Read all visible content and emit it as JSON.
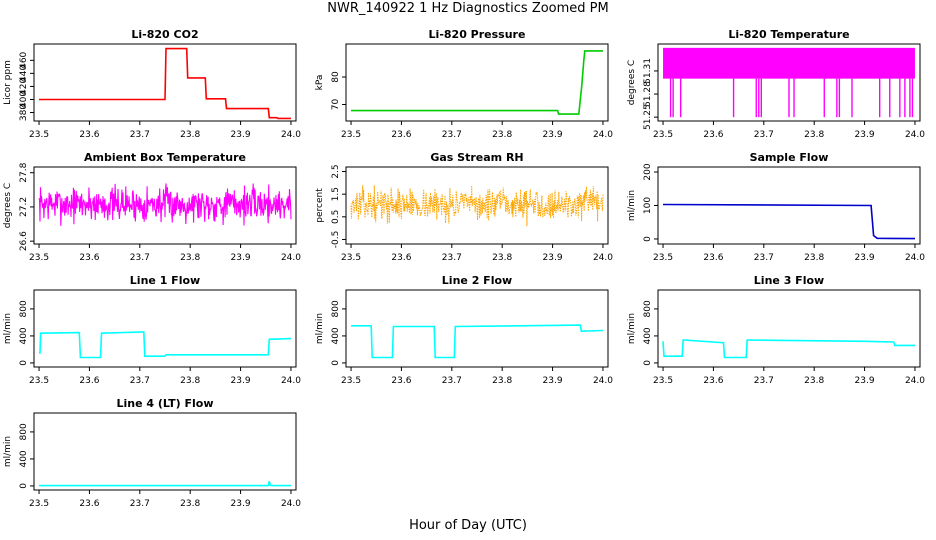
{
  "figure": {
    "title": "NWR_140922  1 Hz Diagnostics Zoomed PM",
    "xlabel": "Hour of Day (UTC)"
  },
  "chart_data": [
    {
      "type": "line",
      "title": "Li-820 CO2",
      "ylabel": "Licor ppm",
      "color": "#ff0000",
      "xlim": [
        23.49,
        24.01
      ],
      "ylim": [
        367,
        485
      ],
      "x_ticks": [
        "23.5",
        "23.6",
        "23.7",
        "23.8",
        "23.9",
        "24.0"
      ],
      "y_ticks": [
        "380",
        "400",
        "420",
        "440",
        "460"
      ],
      "series": [
        {
          "x": [
            23.5,
            23.75,
            23.752,
            23.793,
            23.795,
            23.83,
            23.832,
            23.87,
            23.872,
            23.955,
            23.957,
            23.972,
            23.974,
            24.0
          ],
          "y": [
            400,
            400,
            478,
            478,
            433,
            433,
            401,
            401,
            386,
            386,
            372,
            372,
            371,
            371
          ]
        }
      ]
    },
    {
      "type": "line",
      "title": "Li-820 Pressure",
      "ylabel": "kPa",
      "color": "#00cc00",
      "xlim": [
        23.49,
        24.01
      ],
      "ylim": [
        64,
        92
      ],
      "x_ticks": [
        "23.5",
        "23.6",
        "23.7",
        "23.8",
        "23.9",
        "24.0"
      ],
      "y_ticks": [
        "70",
        "80"
      ],
      "series": [
        {
          "x": [
            23.5,
            23.91,
            23.912,
            23.952,
            23.958,
            23.962,
            23.964,
            24.0
          ],
          "y": [
            67.8,
            67.8,
            66.5,
            66.5,
            77,
            86,
            89.5,
            89.5
          ]
        }
      ]
    },
    {
      "type": "line",
      "title": "Li-820 Temperature",
      "ylabel": "degrees C",
      "color": "#ff00ff",
      "xlim": [
        23.49,
        24.01
      ],
      "ylim": [
        51.245,
        51.345
      ],
      "x_ticks": [
        "23.5",
        "23.6",
        "23.7",
        "23.8",
        "23.9",
        "24.0"
      ],
      "y_ticks": [
        "51.25",
        "51.28",
        "51.31"
      ],
      "band": [
        51.3,
        51.34
      ],
      "spikes": [
        23.515,
        23.52,
        23.535,
        23.64,
        23.685,
        23.69,
        23.695,
        23.75,
        23.76,
        23.82,
        23.845,
        23.85,
        23.875,
        23.93,
        23.95,
        23.97,
        23.98,
        23.99,
        23.995
      ],
      "spike_min": 51.25
    },
    {
      "type": "line",
      "title": "Ambient Box Temperature",
      "ylabel": "degrees C",
      "color": "#ff00ff",
      "xlim": [
        23.49,
        24.01
      ],
      "ylim": [
        26.55,
        27.9
      ],
      "x_ticks": [
        "23.5",
        "23.6",
        "23.7",
        "23.8",
        "23.9",
        "24.0"
      ],
      "y_ticks": [
        "26.6",
        "27.2",
        "27.8"
      ],
      "noise": {
        "center": 27.25,
        "amplitude": 0.45,
        "seed": 7
      }
    },
    {
      "type": "scatter",
      "title": "Gas Stream RH",
      "ylabel": "percent",
      "color": "#ffa500",
      "xlim": [
        23.49,
        24.01
      ],
      "ylim": [
        -0.7,
        2.7
      ],
      "x_ticks": [
        "23.5",
        "23.6",
        "23.7",
        "23.8",
        "23.9",
        "24.0"
      ],
      "y_ticks": [
        "-0.5",
        "0.5",
        "1.5",
        "2.5"
      ],
      "noise": {
        "center": 1.05,
        "amplitude": 1.0,
        "seed": 13
      }
    },
    {
      "type": "line",
      "title": "Sample Flow",
      "ylabel": "ml/min",
      "color": "#0000cc",
      "xlim": [
        23.49,
        24.01
      ],
      "ylim": [
        -15,
        215
      ],
      "x_ticks": [
        "23.5",
        "23.6",
        "23.7",
        "23.8",
        "23.9",
        "24.0"
      ],
      "y_ticks": [
        "0",
        "100",
        "200"
      ],
      "series": [
        {
          "x": [
            23.5,
            23.913,
            23.918,
            23.925,
            24.0
          ],
          "y": [
            103,
            100,
            10,
            2,
            1
          ]
        }
      ]
    },
    {
      "type": "line",
      "title": "Line 1 Flow",
      "ylabel": "ml/min",
      "color": "#00ffff",
      "xlim": [
        23.49,
        24.01
      ],
      "ylim": [
        -60,
        1080
      ],
      "x_ticks": [
        "23.5",
        "23.6",
        "23.7",
        "23.8",
        "23.9",
        "24.0"
      ],
      "y_ticks": [
        "0",
        "400",
        "800"
      ],
      "series": [
        {
          "x": [
            23.5,
            23.502,
            23.503,
            23.58,
            23.582,
            23.622,
            23.624,
            23.708,
            23.71,
            23.75,
            23.752,
            23.955,
            23.957,
            24.0
          ],
          "y": [
            150,
            150,
            440,
            450,
            80,
            80,
            440,
            460,
            100,
            100,
            120,
            120,
            350,
            360
          ]
        }
      ]
    },
    {
      "type": "line",
      "title": "Line 2 Flow",
      "ylabel": "ml/min",
      "color": "#00ffff",
      "xlim": [
        23.49,
        24.01
      ],
      "ylim": [
        -60,
        1080
      ],
      "x_ticks": [
        "23.5",
        "23.6",
        "23.7",
        "23.8",
        "23.9",
        "24.0"
      ],
      "y_ticks": [
        "0",
        "400",
        "800"
      ],
      "series": [
        {
          "x": [
            23.5,
            23.54,
            23.542,
            23.582,
            23.584,
            23.665,
            23.667,
            23.705,
            23.707,
            23.955,
            23.957,
            24.0
          ],
          "y": [
            550,
            550,
            80,
            80,
            540,
            540,
            80,
            80,
            540,
            560,
            470,
            480
          ]
        }
      ]
    },
    {
      "type": "line",
      "title": "Line 3 Flow",
      "ylabel": "ml/min",
      "color": "#00ffff",
      "xlim": [
        23.49,
        24.01
      ],
      "ylim": [
        -60,
        1080
      ],
      "x_ticks": [
        "23.5",
        "23.6",
        "23.7",
        "23.8",
        "23.9",
        "24.0"
      ],
      "y_ticks": [
        "0",
        "400",
        "800"
      ],
      "series": [
        {
          "x": [
            23.5,
            23.502,
            23.538,
            23.54,
            23.62,
            23.622,
            23.665,
            23.667,
            23.9,
            23.958,
            23.96,
            24.0
          ],
          "y": [
            320,
            100,
            100,
            340,
            300,
            80,
            80,
            340,
            320,
            310,
            260,
            260
          ]
        }
      ]
    },
    {
      "type": "line",
      "title": "Line 4 (LT) Flow",
      "ylabel": "ml/min",
      "color": "#00ffff",
      "xlim": [
        23.49,
        24.01
      ],
      "ylim": [
        -60,
        1080
      ],
      "x_ticks": [
        "23.5",
        "23.6",
        "23.7",
        "23.8",
        "23.9",
        "24.0"
      ],
      "y_ticks": [
        "0",
        "400",
        "800"
      ],
      "series": [
        {
          "x": [
            23.5,
            23.955,
            23.957,
            23.959,
            23.961,
            24.0
          ],
          "y": [
            5,
            5,
            70,
            10,
            5,
            5
          ]
        }
      ]
    }
  ]
}
